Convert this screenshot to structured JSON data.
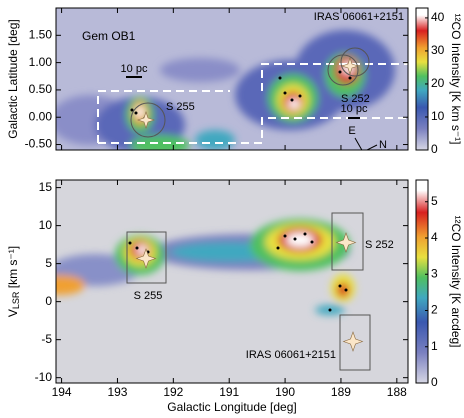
{
  "chart_data": [
    {
      "type": "heatmap",
      "xlim": [
        194.1,
        187.8
      ],
      "xticks": [
        194,
        193,
        192,
        191,
        190,
        189,
        188
      ],
      "ylabel": "Galactic Latitude [deg]",
      "ylim": [
        -0.6,
        2.0
      ],
      "yticks": [
        {
          "value": -0.5,
          "label": "-0.50"
        },
        {
          "value": 0,
          "label": "0.00"
        },
        {
          "value": 0.5,
          "label": "0.50"
        },
        {
          "value": 1,
          "label": "1.00"
        },
        {
          "value": 1.5,
          "label": "1.50"
        }
      ],
      "colorbar": {
        "label": "¹²CO Intensity [K km s⁻¹]",
        "lim": [
          0,
          43
        ],
        "ticks": [
          0,
          10,
          20,
          30,
          40
        ]
      },
      "annotations": [
        "Gem OB1",
        "IRAS 06061+2151",
        "S 255",
        "S 252",
        "10 pc",
        "10 pc",
        "E",
        "N"
      ]
    },
    {
      "type": "heatmap",
      "xlabel": "Galactic Longitude [deg]",
      "xlim": [
        194.1,
        187.8
      ],
      "xticks": [
        194,
        193,
        192,
        191,
        190,
        189,
        188
      ],
      "ylabel": "V",
      "ylabel_sub": "LSR",
      "ylabel_unit": " [km s⁻¹]",
      "ylim": [
        -10.7,
        16
      ],
      "yticks": [
        -10,
        -5,
        0,
        5,
        10,
        15
      ],
      "colorbar": {
        "label": "¹²CO Intensity [K arcdeg]",
        "lim": [
          0,
          5.6
        ],
        "ticks": [
          0,
          1,
          2,
          3,
          4,
          5
        ]
      },
      "annotations": [
        "S 252",
        "S 255",
        "IRAS 06061+2151"
      ]
    }
  ]
}
